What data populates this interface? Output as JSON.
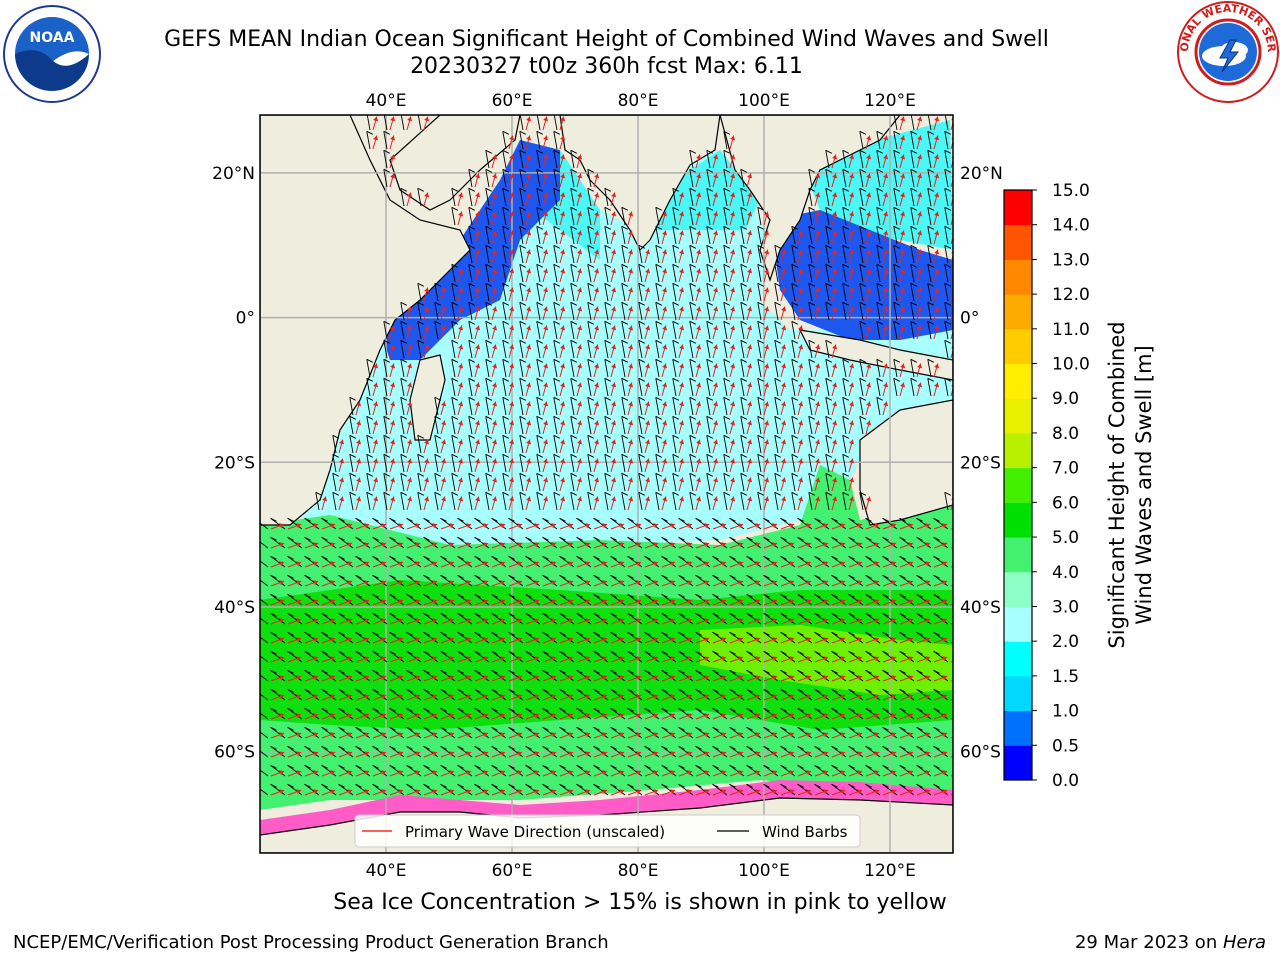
{
  "header": {
    "title_line1": "GEFS MEAN Indian Ocean Significant Height of Combined Wind Waves and Swell",
    "title_line2": "20230327 t00z 360h fcst   Max: 6.11"
  },
  "logos": {
    "left": "NOAA",
    "right": "NATIONAL WEATHER SERVICE"
  },
  "map": {
    "lon_ticks": [
      "40°E",
      "60°E",
      "80°E",
      "100°E",
      "120°E"
    ],
    "lat_ticks": [
      "20°N",
      "0°",
      "20°S",
      "40°S",
      "60°S"
    ],
    "lon_values": [
      40,
      60,
      80,
      100,
      120
    ],
    "lat_values": [
      20,
      0,
      -20,
      -40,
      -60
    ],
    "extent": {
      "lon_min": 20,
      "lon_max": 130,
      "lat_min": -74,
      "lat_max": 28
    },
    "colors": {
      "land": "#efedde",
      "coast": "#000000",
      "arrows": "#e8231c",
      "barbs": "#000000",
      "grid": "#b0b0b0"
    }
  },
  "legend": {
    "items": [
      {
        "label": "Primary Wave Direction (unscaled)",
        "color": "#ff0000"
      },
      {
        "label": "Wind Barbs",
        "color": "#000000"
      }
    ]
  },
  "colorbar": {
    "label_line1": "Significant Height of Combined",
    "label_line2": "Wind Waves and Swell [m]",
    "ticks": [
      "0.0",
      "0.5",
      "1.0",
      "1.5",
      "2.0",
      "3.0",
      "4.0",
      "5.0",
      "6.0",
      "7.0",
      "8.0",
      "9.0",
      "10.0",
      "11.0",
      "12.0",
      "13.0",
      "14.0",
      "15.0"
    ],
    "colors": [
      "#0000ff",
      "#0070ff",
      "#00d8ff",
      "#00ffff",
      "#a8ffff",
      "#8fffc8",
      "#44f070",
      "#00e000",
      "#44f000",
      "#b8f000",
      "#e8f000",
      "#ffee00",
      "#ffcc00",
      "#ffaa00",
      "#ff8800",
      "#ff5500",
      "#ff0000"
    ]
  },
  "notes": {
    "ice": "Sea Ice Concentration > 15% is shown in pink to yellow",
    "producer": "NCEP/EMC/Verification Post Processing Product Generation Branch",
    "date": "29 Mar 2023 on ",
    "machine": "Hera"
  }
}
